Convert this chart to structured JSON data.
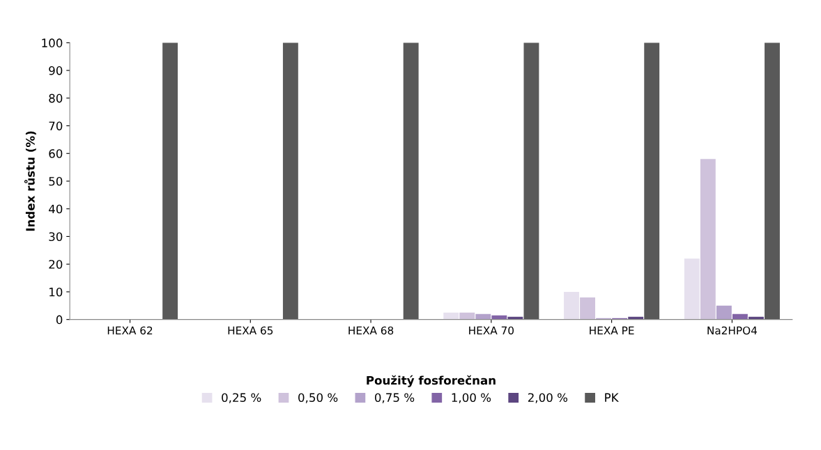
{
  "chart_data": {
    "type": "bar",
    "xlabel": "Použitý fosforečnan",
    "ylabel": "Index růstu (%)",
    "categories": [
      "HEXA 62",
      "HEXA 65",
      "HEXA 68",
      "HEXA 70",
      "HEXA PE",
      "Na2HPO4"
    ],
    "series": [
      {
        "name": "0,25 %",
        "color": "#e6e0ee",
        "values": [
          0,
          0,
          0,
          2.5,
          10,
          22
        ]
      },
      {
        "name": "0,50 %",
        "color": "#cfc2dc",
        "values": [
          0,
          0,
          0,
          2.5,
          8,
          58
        ]
      },
      {
        "name": "0,75 %",
        "color": "#b3a2cb",
        "values": [
          0,
          0,
          0,
          2,
          0.5,
          5
        ]
      },
      {
        "name": "1,00 %",
        "color": "#8264a6",
        "values": [
          0,
          0,
          0,
          1.5,
          0.5,
          2
        ]
      },
      {
        "name": "2,00 %",
        "color": "#5c4680",
        "values": [
          0,
          0,
          0,
          1,
          1,
          1
        ]
      },
      {
        "name": "PK",
        "color": "#595959",
        "values": [
          100,
          100,
          100,
          100,
          100,
          100
        ]
      }
    ],
    "ylim": [
      0,
      100
    ],
    "yticks": [
      0,
      10,
      20,
      30,
      40,
      50,
      60,
      70,
      80,
      90,
      100
    ],
    "grid": false,
    "legend": "bottom"
  }
}
